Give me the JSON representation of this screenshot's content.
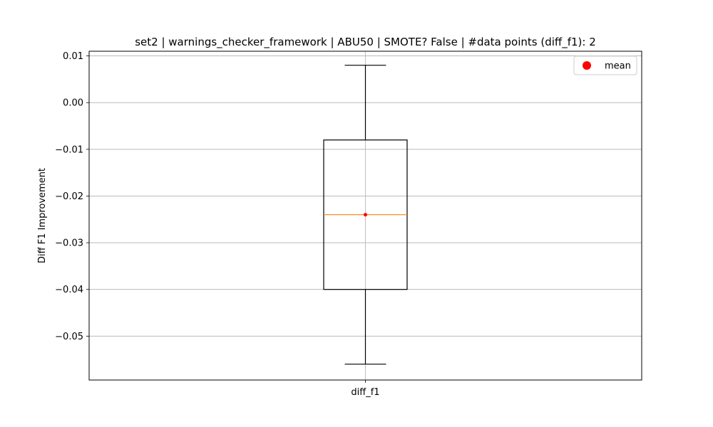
{
  "chart_data": {
    "type": "box",
    "title": "set2 | warnings_checker_framework | ABU50 | SMOTE? False | #data points (diff_f1): 2",
    "xlabel": "",
    "ylabel": "Diff F1 Improvement",
    "categories": [
      "diff_f1"
    ],
    "ylim": [
      -0.0594,
      0.011
    ],
    "yticks": [
      0.01,
      0.0,
      -0.01,
      -0.02,
      -0.03,
      -0.04,
      -0.05
    ],
    "ytick_labels": [
      "0.01",
      "0.00",
      "−0.01",
      "−0.02",
      "−0.03",
      "−0.04",
      "−0.05"
    ],
    "grid": true,
    "legend": {
      "placement": "top-right",
      "entries": [
        {
          "label": "mean",
          "color": "#ff0000"
        }
      ]
    },
    "boxes": [
      {
        "name": "diff_f1",
        "whisker_low": -0.056,
        "q1": -0.04,
        "median": -0.024,
        "q3": -0.008,
        "whisker_high": 0.008,
        "mean": -0.024
      }
    ],
    "colors": {
      "box": "#000000",
      "median": "#ff7f0e",
      "mean": "#ff0000",
      "grid": "#b0b0b0"
    }
  }
}
